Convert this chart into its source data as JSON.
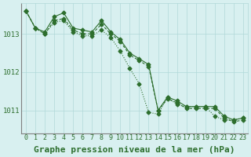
{
  "background_color": "#d8f0f0",
  "grid_color": "#b0d8d8",
  "line_color": "#2d6e2d",
  "marker_color": "#2d6e2d",
  "xlabel": "Graphe pression niveau de la mer (hPa)",
  "xlabel_fontsize": 8,
  "tick_fontsize": 6.5,
  "ytick_labels": [
    1011,
    1012,
    1013
  ],
  "ylim": [
    1010.4,
    1013.8
  ],
  "xlim": [
    -0.5,
    23.5
  ],
  "series1": [
    1013.6,
    1013.15,
    1013.05,
    1013.45,
    1013.55,
    1013.15,
    1013.1,
    1013.05,
    1013.35,
    1013.05,
    1012.85,
    1012.5,
    1012.35,
    1012.2,
    1011.0,
    1011.35,
    1011.25,
    1011.1,
    1011.1,
    1011.1,
    1011.1,
    1010.85,
    1010.75,
    1010.8
  ],
  "series2": [
    1013.6,
    1013.15,
    1013.0,
    1013.35,
    1013.4,
    1013.1,
    1013.0,
    1013.0,
    1013.25,
    1013.0,
    1012.8,
    1012.45,
    1012.3,
    1012.15,
    1011.0,
    1011.3,
    1011.2,
    1011.05,
    1011.05,
    1011.05,
    1011.05,
    1010.8,
    1010.7,
    1010.75
  ],
  "series3": [
    1013.6,
    1013.15,
    1013.0,
    1013.3,
    1013.35,
    1013.05,
    1012.95,
    1012.95,
    1013.1,
    1012.9,
    1012.55,
    1012.1,
    1011.7,
    1010.95,
    1010.9,
    1011.35,
    1011.15,
    1011.1,
    1011.1,
    1011.1,
    1010.85,
    1010.75,
    1010.75,
    1010.8
  ]
}
